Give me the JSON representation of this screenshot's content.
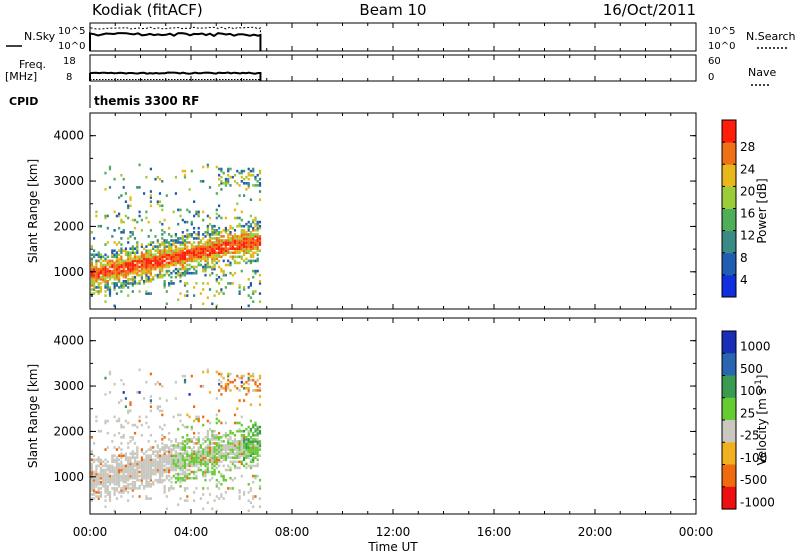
{
  "header": {
    "station": "Kodiak (fitACF)",
    "beam": "Beam 10",
    "date": "16/Oct/2011"
  },
  "nsky_panel": {
    "left_label": "N.Sky",
    "right_label": "N.Search",
    "left_ticks": [
      "10^5",
      "10^0"
    ],
    "right_ticks": [
      "10^5",
      "10^0"
    ]
  },
  "freq_panel": {
    "left_label_line1": "Freq.",
    "left_label_line2": "[MHz]",
    "right_label": "Nave",
    "left_ticks": [
      "18",
      "8"
    ],
    "right_ticks": [
      "60",
      "0"
    ]
  },
  "cpid_panel": {
    "label": "CPID",
    "text": "themis 3300 RF"
  },
  "time_axis": {
    "label": "Time UT",
    "tick_labels": [
      "00:00",
      "04:00",
      "08:00",
      "12:00",
      "16:00",
      "20:00",
      "00:00"
    ]
  },
  "chart_data": [
    {
      "type": "heatmap",
      "name": "power",
      "xlabel": "Time UT",
      "ylabel": "Slant Range [km]",
      "xlim": [
        0,
        24
      ],
      "ylim": [
        180,
        4500
      ],
      "y_ticks": [
        "1000",
        "2000",
        "3000",
        "4000"
      ],
      "data_extent_hours": [
        0.0,
        6.75
      ],
      "colorbar": {
        "label": "Power [dB]",
        "ticks": [
          "4",
          "8",
          "12",
          "16",
          "20",
          "24",
          "28"
        ],
        "range": [
          0,
          32
        ],
        "colors": [
          "#1030e0",
          "#1f5db0",
          "#3a8a86",
          "#4fae58",
          "#9ccc3a",
          "#e8b81a",
          "#f07018",
          "#ff1e0a"
        ]
      },
      "features": [
        {
          "description": "strongest echo band",
          "start_time_h": 0.1,
          "start_range_km": 960,
          "end_time_h": 6.7,
          "end_range_km": 1700,
          "level_db": 28
        },
        {
          "description": "scattered echoes",
          "time_range_h": [
            0.2,
            6.5
          ],
          "range_km": [
            450,
            3500
          ],
          "level_db": 12
        }
      ]
    },
    {
      "type": "heatmap",
      "name": "velocity",
      "xlabel": "Time UT",
      "ylabel": "Slant Range [km]",
      "xlim": [
        0,
        24
      ],
      "ylim": [
        180,
        4500
      ],
      "y_ticks": [
        "1000",
        "2000",
        "3000",
        "4000"
      ],
      "data_extent_hours": [
        0.0,
        6.75
      ],
      "colorbar": {
        "label": "Velocity [m s^-1]",
        "ticks": [
          "1000",
          "500",
          "100",
          "25",
          "-25",
          "-100",
          "-500",
          "-1000"
        ],
        "colors": [
          "#1a2fb8",
          "#2a66b0",
          "#3a9a50",
          "#66cc33",
          "#c8c8c0",
          "#f0b020",
          "#f06a10",
          "#ee1010"
        ]
      },
      "features": [
        {
          "description": "ground scatter (grey) band",
          "time_range_h": [
            0.1,
            6.7
          ],
          "range_km": [
            800,
            2100
          ],
          "velocity_ms": 0
        },
        {
          "description": "green positive-velocity patch",
          "time_range_h": [
            3.2,
            6.7
          ],
          "range_km": [
            700,
            2300
          ],
          "velocity_ms": 100
        },
        {
          "description": "orange negative-velocity patch",
          "time_range_h": [
            3.8,
            6.3
          ],
          "range_km": [
            2200,
            3400
          ],
          "velocity_ms": -100
        }
      ]
    }
  ]
}
